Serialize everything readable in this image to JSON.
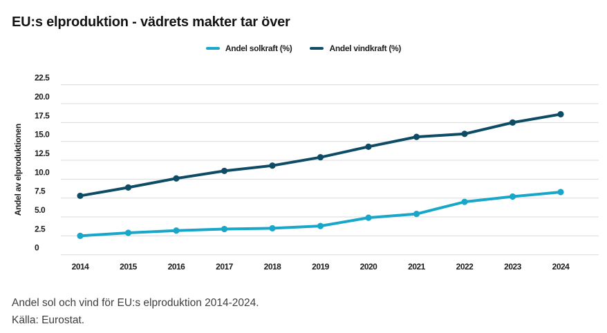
{
  "title": "EU:s elproduktion - vädrets makter tar över",
  "caption": {
    "line1": "Andel sol och vind för EU:s elproduktion 2014-2024.",
    "line2": "Källa: Eurostat."
  },
  "colors": {
    "solar": "#18a7c9",
    "wind": "#0e4c66",
    "grid": "#d9d9d9",
    "title_text": "#131313",
    "axis_text": "#1a1a1a",
    "caption_text": "#3d3d3d"
  },
  "chart_data": {
    "type": "line",
    "x": [
      "2014",
      "2015",
      "2016",
      "2017",
      "2018",
      "2019",
      "2020",
      "2021",
      "2022",
      "2023",
      "2024"
    ],
    "series": [
      {
        "name": "Andel solkraft (%)",
        "color": "#18a7c9",
        "values": [
          2.5,
          2.9,
          3.2,
          3.4,
          3.5,
          3.8,
          4.9,
          5.4,
          7.0,
          7.7,
          8.3
        ]
      },
      {
        "name": "Andel vindkraft (%)",
        "color": "#0e4c66",
        "values": [
          7.8,
          8.9,
          10.1,
          11.1,
          11.8,
          12.9,
          14.3,
          15.6,
          16.0,
          17.5,
          18.6
        ]
      }
    ],
    "ylabel": "Andel av elproduktionen",
    "xlabel": "",
    "ylim": [
      0,
      22.5
    ],
    "yticks": [
      {
        "value": 0,
        "label": "0"
      },
      {
        "value": 2.5,
        "label": "2.5"
      },
      {
        "value": 5,
        "label": "5.0"
      },
      {
        "value": 7.5,
        "label": "7.5"
      },
      {
        "value": 10,
        "label": "10.0"
      },
      {
        "value": 12.5,
        "label": "12.5"
      },
      {
        "value": 15,
        "label": "15.0"
      },
      {
        "value": 17.5,
        "label": "17.5"
      },
      {
        "value": 20,
        "label": "20.0"
      },
      {
        "value": 22.5,
        "label": "22.5"
      }
    ],
    "grid": true,
    "legend_position": "top-center"
  }
}
